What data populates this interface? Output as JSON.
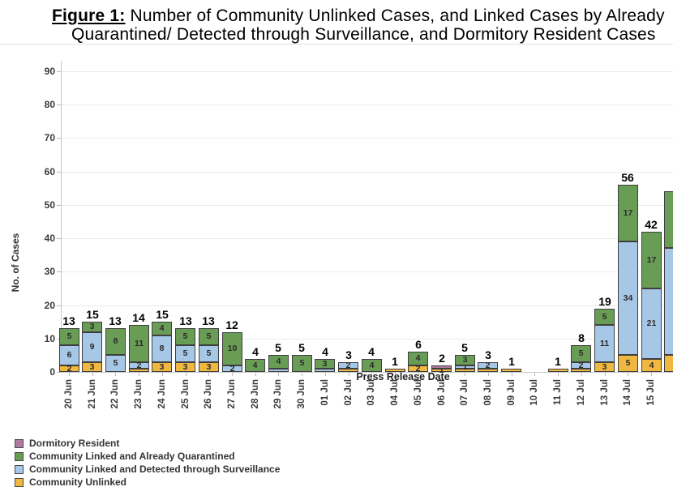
{
  "title": {
    "figure_label": "Figure 1:",
    "line1_rest": " Number of Community Unlinked Cases, and Linked Cases by Already",
    "line2": "Quarantined/ Detected through Surveillance, and Dormitory Resident Cases"
  },
  "y_axis": {
    "title": "No. of Cases",
    "ticks": [
      0,
      10,
      20,
      30,
      40,
      50,
      60,
      70,
      80,
      90
    ]
  },
  "x_axis": {
    "title": "Press Release Date"
  },
  "legend": {
    "items": [
      {
        "label": "Dormitory Resident",
        "key": "dorm"
      },
      {
        "label": "Community Linked and Already Quarantined",
        "key": "quarantined"
      },
      {
        "label": "Community Linked and Detected through Surveillance",
        "key": "surveillance"
      },
      {
        "label": "Community Unlinked",
        "key": "unlinked"
      }
    ]
  },
  "colors": {
    "dorm": "#b07aa1",
    "quarantined": "#699d55",
    "surveillance": "#a7c7e7",
    "unlinked": "#f0b840",
    "outline": "#3f3f3f",
    "grid": "#ebebeb",
    "axis": "#c8c8c8"
  },
  "chart_data": {
    "type": "bar",
    "stacked": true,
    "title": "Figure 1: Number of Community Unlinked Cases, and Linked Cases by Already Quarantined/ Detected through Surveillance, and Dormitory Resident Cases",
    "xlabel": "Press Release Date",
    "ylabel": "No. of Cases",
    "ylim": [
      0,
      90
    ],
    "grid": "horizontal",
    "legend_position": "bottom-left",
    "categories": [
      "20 Jun",
      "21 Jun",
      "22 Jun",
      "23 Jun",
      "24 Jun",
      "25 Jun",
      "26 Jun",
      "27 Jun",
      "28 Jun",
      "29 Jun",
      "30 Jun",
      "01 Jul",
      "02 Jul",
      "03 Jul",
      "04 Jul",
      "05 Jul",
      "06 Jul",
      "07 Jul",
      "08 Jul",
      "09 Jul",
      "10 Jul",
      "11 Jul",
      "12 Jul",
      "13 Jul",
      "14 Jul",
      "15 Jul"
    ],
    "series": [
      {
        "name": "Dormitory Resident",
        "key": "dorm",
        "values": [
          0,
          0,
          0,
          0,
          0,
          0,
          0,
          0,
          0,
          0,
          0,
          0,
          0,
          0,
          0,
          0,
          1,
          0,
          0,
          0,
          0,
          0,
          0,
          0,
          0,
          0
        ]
      },
      {
        "name": "Community Linked and Already Quarantined",
        "key": "quarantined",
        "values": [
          5,
          3,
          8,
          11,
          4,
          5,
          5,
          10,
          4,
          4,
          5,
          3,
          0,
          4,
          0,
          4,
          0,
          3,
          0,
          0,
          0,
          0,
          5,
          5,
          17,
          17
        ]
      },
      {
        "name": "Community Linked and Detected through Surveillance",
        "key": "surveillance",
        "values": [
          6,
          9,
          5,
          2,
          8,
          5,
          5,
          2,
          0,
          1,
          0,
          1,
          2,
          0,
          0,
          0,
          0,
          1,
          2,
          0,
          0,
          0,
          2,
          11,
          34,
          21
        ]
      },
      {
        "name": "Community Unlinked",
        "key": "unlinked",
        "values": [
          2,
          3,
          0,
          1,
          3,
          3,
          3,
          0,
          0,
          0,
          0,
          0,
          1,
          0,
          1,
          2,
          1,
          1,
          1,
          1,
          0,
          1,
          1,
          3,
          5,
          4
        ]
      }
    ],
    "totals": [
      13,
      15,
      13,
      14,
      15,
      13,
      13,
      12,
      4,
      5,
      5,
      4,
      3,
      4,
      1,
      6,
      2,
      5,
      3,
      1,
      0,
      1,
      8,
      19,
      56,
      42
    ],
    "bars": [
      {
        "date": "20 Jun",
        "total": 13,
        "segs": [
          {
            "k": "unlinked",
            "v": 2,
            "label": "2"
          },
          {
            "k": "surveillance",
            "v": 6,
            "label": "6"
          },
          {
            "k": "quarantined",
            "v": 5,
            "label": "5"
          }
        ]
      },
      {
        "date": "21 Jun",
        "total": 15,
        "segs": [
          {
            "k": "unlinked",
            "v": 3,
            "label": "3"
          },
          {
            "k": "surveillance",
            "v": 9,
            "label": "9"
          },
          {
            "k": "quarantined",
            "v": 3,
            "label": "3"
          }
        ]
      },
      {
        "date": "22 Jun",
        "total": 13,
        "segs": [
          {
            "k": "surveillance",
            "v": 5,
            "label": "5"
          },
          {
            "k": "quarantined",
            "v": 8,
            "label": "8"
          }
        ]
      },
      {
        "date": "23 Jun",
        "total": 14,
        "segs": [
          {
            "k": "unlinked",
            "v": 1,
            "label": ""
          },
          {
            "k": "surveillance",
            "v": 2,
            "label": "2"
          },
          {
            "k": "quarantined",
            "v": 11,
            "label": "11"
          }
        ]
      },
      {
        "date": "24 Jun",
        "total": 15,
        "segs": [
          {
            "k": "unlinked",
            "v": 3,
            "label": "3"
          },
          {
            "k": "surveillance",
            "v": 8,
            "label": "8"
          },
          {
            "k": "quarantined",
            "v": 4,
            "label": "4"
          }
        ]
      },
      {
        "date": "25 Jun",
        "total": 13,
        "segs": [
          {
            "k": "unlinked",
            "v": 3,
            "label": "3"
          },
          {
            "k": "surveillance",
            "v": 5,
            "label": "5"
          },
          {
            "k": "quarantined",
            "v": 5,
            "label": "5"
          }
        ]
      },
      {
        "date": "26 Jun",
        "total": 13,
        "segs": [
          {
            "k": "unlinked",
            "v": 3,
            "label": "3"
          },
          {
            "k": "surveillance",
            "v": 5,
            "label": "5"
          },
          {
            "k": "quarantined",
            "v": 5,
            "label": "5"
          }
        ]
      },
      {
        "date": "27 Jun",
        "total": 12,
        "segs": [
          {
            "k": "surveillance",
            "v": 2,
            "label": "2"
          },
          {
            "k": "quarantined",
            "v": 10,
            "label": "10"
          }
        ]
      },
      {
        "date": "28 Jun",
        "total": 4,
        "segs": [
          {
            "k": "quarantined",
            "v": 4,
            "label": "4"
          }
        ]
      },
      {
        "date": "29 Jun",
        "total": 5,
        "segs": [
          {
            "k": "surveillance",
            "v": 1,
            "label": ""
          },
          {
            "k": "quarantined",
            "v": 4,
            "label": "4"
          }
        ]
      },
      {
        "date": "30 Jun",
        "total": 5,
        "segs": [
          {
            "k": "quarantined",
            "v": 5,
            "label": "5"
          }
        ]
      },
      {
        "date": "01 Jul",
        "total": 4,
        "segs": [
          {
            "k": "surveillance",
            "v": 1,
            "label": ""
          },
          {
            "k": "quarantined",
            "v": 3,
            "label": "3"
          }
        ]
      },
      {
        "date": "02 Jul",
        "total": 3,
        "segs": [
          {
            "k": "unlinked",
            "v": 1,
            "label": ""
          },
          {
            "k": "surveillance",
            "v": 2,
            "label": "2"
          }
        ]
      },
      {
        "date": "03 Jul",
        "total": 4,
        "segs": [
          {
            "k": "quarantined",
            "v": 4,
            "label": "4"
          }
        ]
      },
      {
        "date": "04 Jul",
        "total": 1,
        "segs": [
          {
            "k": "unlinked",
            "v": 1,
            "label": ""
          }
        ]
      },
      {
        "date": "05 Jul",
        "total": 6,
        "segs": [
          {
            "k": "unlinked",
            "v": 2,
            "label": "2"
          },
          {
            "k": "quarantined",
            "v": 4,
            "label": "4"
          }
        ]
      },
      {
        "date": "06 Jul",
        "total": 2,
        "segs": [
          {
            "k": "unlinked",
            "v": 1,
            "label": "1"
          },
          {
            "k": "dorm",
            "v": 1,
            "label": ""
          }
        ]
      },
      {
        "date": "07 Jul",
        "total": 5,
        "segs": [
          {
            "k": "unlinked",
            "v": 1,
            "label": ""
          },
          {
            "k": "surveillance",
            "v": 1,
            "label": "1"
          },
          {
            "k": "quarantined",
            "v": 3,
            "label": "3"
          }
        ]
      },
      {
        "date": "08 Jul",
        "total": 3,
        "segs": [
          {
            "k": "unlinked",
            "v": 1,
            "label": ""
          },
          {
            "k": "surveillance",
            "v": 2,
            "label": "2"
          }
        ]
      },
      {
        "date": "09 Jul",
        "total": 1,
        "segs": [
          {
            "k": "unlinked",
            "v": 1,
            "label": ""
          }
        ]
      },
      {
        "date": "10 Jul",
        "total": 0,
        "segs": []
      },
      {
        "date": "11 Jul",
        "total": 1,
        "segs": [
          {
            "k": "unlinked",
            "v": 1,
            "label": ""
          }
        ]
      },
      {
        "date": "12 Jul",
        "total": 8,
        "segs": [
          {
            "k": "unlinked",
            "v": 1,
            "label": ""
          },
          {
            "k": "surveillance",
            "v": 2,
            "label": "2"
          },
          {
            "k": "quarantined",
            "v": 5,
            "label": "5"
          }
        ]
      },
      {
        "date": "13 Jul",
        "total": 19,
        "segs": [
          {
            "k": "unlinked",
            "v": 3,
            "label": "3"
          },
          {
            "k": "surveillance",
            "v": 11,
            "label": "11"
          },
          {
            "k": "quarantined",
            "v": 5,
            "label": "5"
          }
        ]
      },
      {
        "date": "14 Jul",
        "total": 56,
        "segs": [
          {
            "k": "unlinked",
            "v": 5,
            "label": "5"
          },
          {
            "k": "surveillance",
            "v": 34,
            "label": "34"
          },
          {
            "k": "quarantined",
            "v": 17,
            "label": "17"
          }
        ]
      },
      {
        "date": "15 Jul",
        "total": 42,
        "segs": [
          {
            "k": "unlinked",
            "v": 4,
            "label": "4"
          },
          {
            "k": "surveillance",
            "v": 21,
            "label": "21"
          },
          {
            "k": "quarantined",
            "v": 17,
            "label": "17"
          }
        ]
      }
    ],
    "clipped_partial_bar": {
      "segs": [
        {
          "k": "unlinked",
          "v": 5,
          "label": ""
        },
        {
          "k": "surveillance",
          "v": 32,
          "label": ""
        },
        {
          "k": "quarantined",
          "v": 17,
          "label": ""
        }
      ]
    }
  }
}
